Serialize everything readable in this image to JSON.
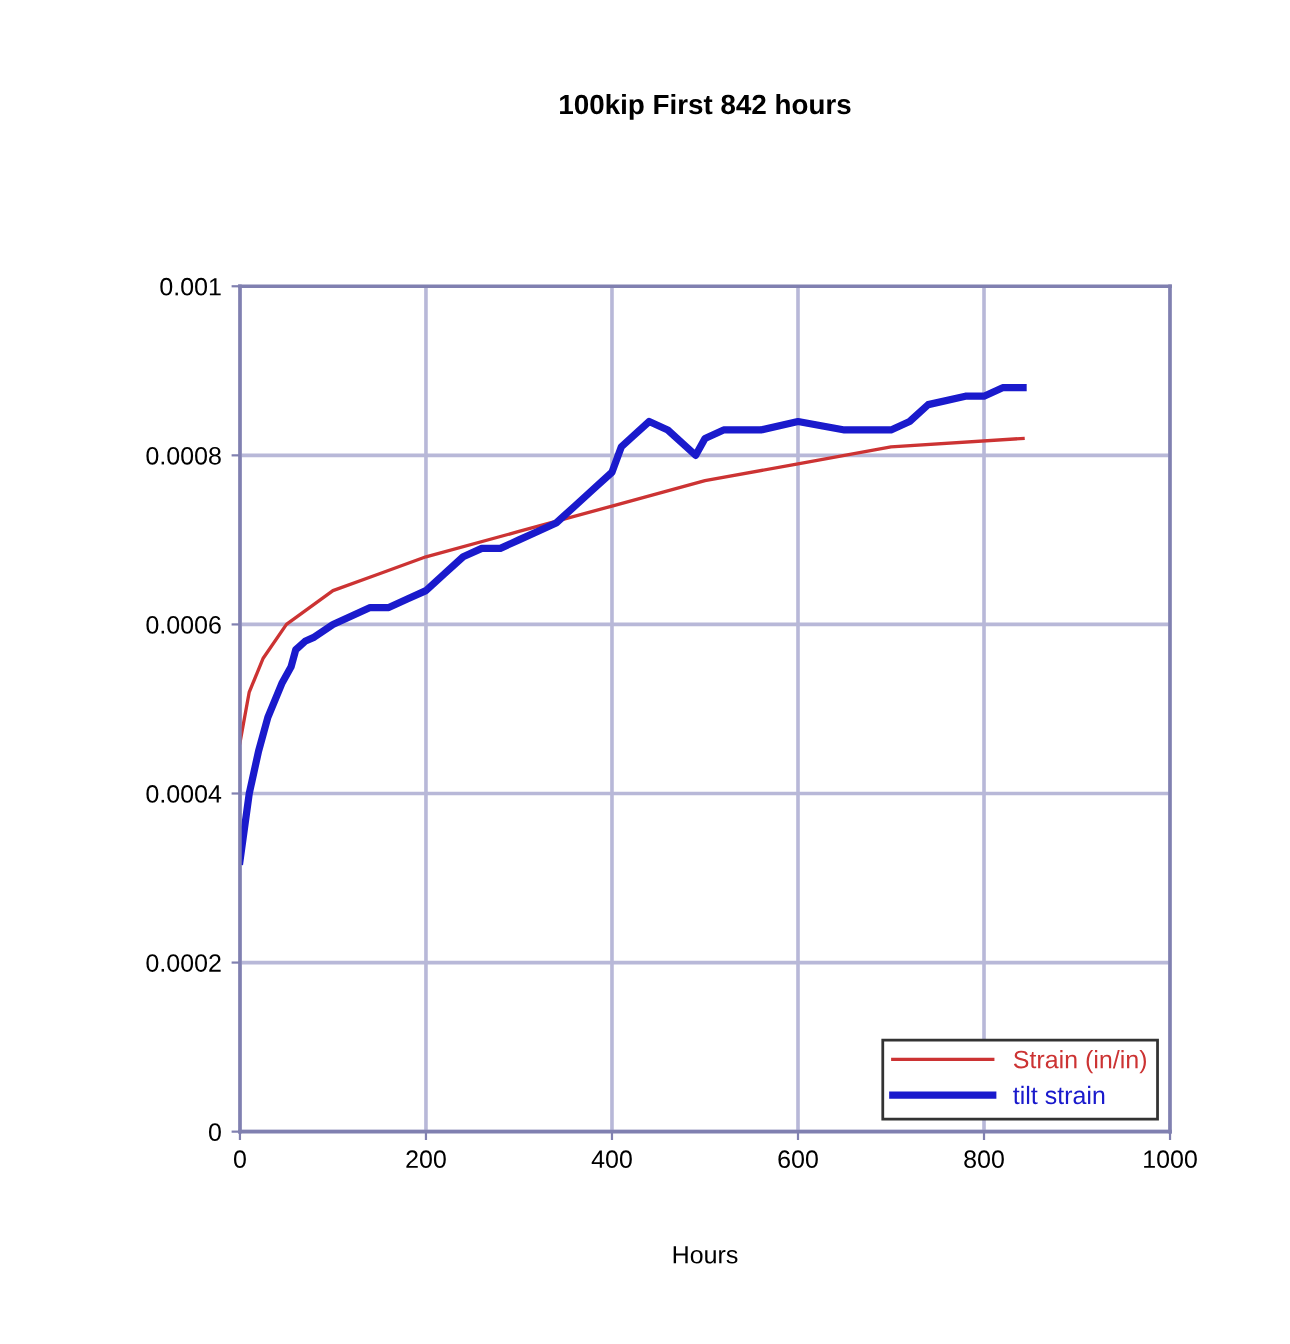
{
  "chart_data": {
    "type": "line",
    "title": "100kip First 842 hours",
    "xlabel": "Hours",
    "xlim": [
      0,
      1000
    ],
    "xticks": [
      0,
      200,
      400,
      600,
      800,
      1000
    ],
    "ylim": [
      0,
      0.001
    ],
    "yticks": [
      {
        "value": 0,
        "label": "0"
      },
      {
        "value": 0.0002,
        "label": "0.0002"
      },
      {
        "value": 0.0004,
        "label": "0.0004"
      },
      {
        "value": 0.0006,
        "label": "0.0006"
      },
      {
        "value": 0.0008,
        "label": "0.0008"
      },
      {
        "value": 0.001,
        "label": "0.001"
      }
    ],
    "grid": true,
    "legend": "bottom right",
    "series": [
      {
        "name": "Strain (in/in)",
        "color": "#cc3333",
        "x": [
          0,
          10,
          25,
          50,
          100,
          150,
          200,
          300,
          400,
          500,
          600,
          700,
          842
        ],
        "values": [
          0.00046,
          0.00052,
          0.00056,
          0.0006,
          0.00064,
          0.00066,
          0.00068,
          0.00071,
          0.00074,
          0.00077,
          0.00079,
          0.00081,
          0.00082
        ]
      },
      {
        "name": "tilt strain",
        "color": "#1a1acc",
        "x": [
          0,
          10,
          20,
          30,
          45,
          55,
          60,
          70,
          80,
          100,
          120,
          140,
          160,
          180,
          200,
          220,
          240,
          260,
          280,
          300,
          320,
          340,
          360,
          380,
          400,
          410,
          420,
          440,
          460,
          480,
          490,
          500,
          520,
          560,
          600,
          650,
          700,
          720,
          740,
          780,
          800,
          820,
          842
        ],
        "values": [
          0.00032,
          0.0004,
          0.00045,
          0.00049,
          0.00053,
          0.00055,
          0.00057,
          0.00058,
          0.000585,
          0.0006,
          0.00061,
          0.00062,
          0.00062,
          0.00063,
          0.00064,
          0.00066,
          0.00068,
          0.00069,
          0.00069,
          0.0007,
          0.00071,
          0.00072,
          0.00074,
          0.00076,
          0.00078,
          0.00081,
          0.00082,
          0.00084,
          0.00083,
          0.00081,
          0.0008,
          0.00082,
          0.00083,
          0.00083,
          0.00084,
          0.00083,
          0.00083,
          0.00084,
          0.00086,
          0.00087,
          0.00087,
          0.00088,
          0.00088
        ]
      }
    ]
  }
}
